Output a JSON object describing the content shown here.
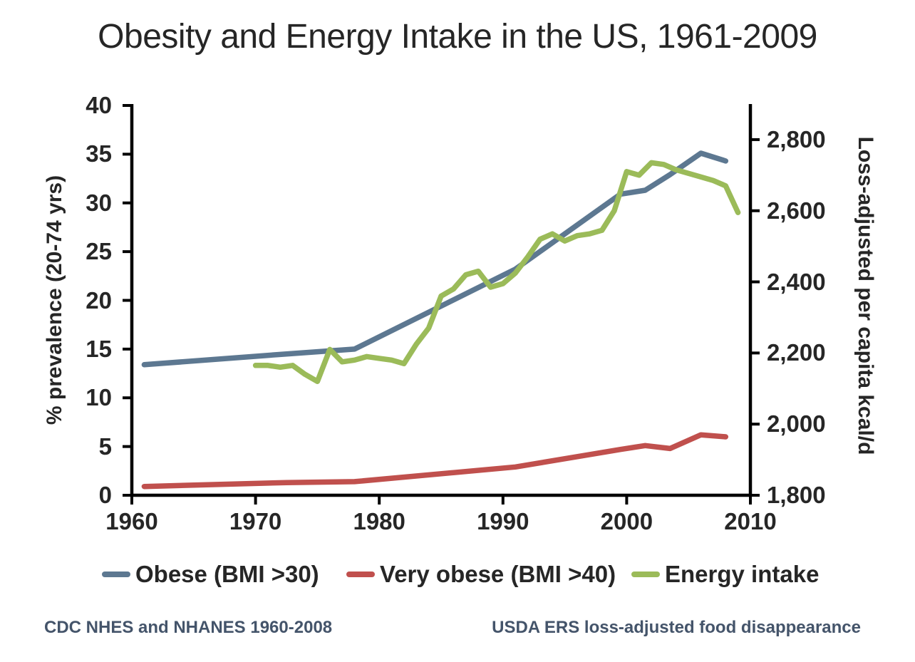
{
  "page": {
    "title": "Obesity and Energy Intake in the US, 1961-2009"
  },
  "footnotes": {
    "left": "CDC NHES and NHANES 1960-2008",
    "right": "USDA ERS loss-adjusted food disappearance"
  },
  "colors": {
    "axis": "#000000",
    "text": "#262626",
    "footnote": "#44546a",
    "obese_line": "#5d7891",
    "very_obese_line": "#c0504d",
    "energy_line": "#9bbb59"
  },
  "chart_data": {
    "type": "line",
    "title": "Obesity and Energy Intake in the US, 1961-2009",
    "grid": false,
    "legend_position": "bottom",
    "x_axis": {
      "min": 1960,
      "max": 2010,
      "ticks": [
        1960,
        1970,
        1980,
        1990,
        2000,
        2010
      ]
    },
    "y_left": {
      "label": "% prevalence (20-74 yrs)",
      "min": 0,
      "max": 40,
      "ticks": [
        0,
        5,
        10,
        15,
        20,
        25,
        30,
        35,
        40
      ]
    },
    "y_right": {
      "label": "Loss-adjusted per capita kcal/d",
      "min": 1800,
      "max": 2896,
      "tick_values": [
        1800,
        2000,
        2200,
        2400,
        2600,
        2800
      ],
      "tick_labels": [
        "1,800",
        "2,000",
        "2,200",
        "2,400",
        "2,600",
        "2,800"
      ]
    },
    "series": [
      {
        "name": "Obese (BMI >30)",
        "axis": "left",
        "color": "#5d7891",
        "points": [
          [
            1961,
            13.4
          ],
          [
            1972.5,
            14.5
          ],
          [
            1978,
            15.0
          ],
          [
            1991,
            23.2
          ],
          [
            1999.5,
            30.9
          ],
          [
            2001.5,
            31.3
          ],
          [
            2003.5,
            32.9
          ],
          [
            2006,
            35.1
          ],
          [
            2008,
            34.3
          ]
        ]
      },
      {
        "name": "Very obese (BMI >40)",
        "axis": "left",
        "color": "#c0504d",
        "points": [
          [
            1961,
            0.9
          ],
          [
            1972.5,
            1.3
          ],
          [
            1978,
            1.4
          ],
          [
            1991,
            2.9
          ],
          [
            1999.5,
            4.7
          ],
          [
            2001.5,
            5.1
          ],
          [
            2003.5,
            4.8
          ],
          [
            2006,
            6.2
          ],
          [
            2008,
            6.0
          ]
        ]
      },
      {
        "name": "Energy intake",
        "axis": "right",
        "color": "#9bbb59",
        "points": [
          [
            1970,
            2165
          ],
          [
            1971,
            2165
          ],
          [
            1972,
            2160
          ],
          [
            1973,
            2165
          ],
          [
            1974,
            2140
          ],
          [
            1975,
            2120
          ],
          [
            1976,
            2210
          ],
          [
            1977,
            2175
          ],
          [
            1978,
            2180
          ],
          [
            1979,
            2190
          ],
          [
            1980,
            2185
          ],
          [
            1981,
            2180
          ],
          [
            1982,
            2170
          ],
          [
            1983,
            2225
          ],
          [
            1984,
            2270
          ],
          [
            1985,
            2360
          ],
          [
            1986,
            2380
          ],
          [
            1987,
            2420
          ],
          [
            1988,
            2430
          ],
          [
            1989,
            2385
          ],
          [
            1990,
            2395
          ],
          [
            1991,
            2425
          ],
          [
            1992,
            2470
          ],
          [
            1993,
            2520
          ],
          [
            1994,
            2535
          ],
          [
            1995,
            2515
          ],
          [
            1996,
            2530
          ],
          [
            1997,
            2535
          ],
          [
            1998,
            2545
          ],
          [
            1999,
            2600
          ],
          [
            2000,
            2710
          ],
          [
            2001,
            2700
          ],
          [
            2002,
            2735
          ],
          [
            2003,
            2730
          ],
          [
            2004,
            2715
          ],
          [
            2005,
            2705
          ],
          [
            2006,
            2695
          ],
          [
            2007,
            2685
          ],
          [
            2008,
            2670
          ],
          [
            2009,
            2595
          ]
        ]
      }
    ]
  }
}
